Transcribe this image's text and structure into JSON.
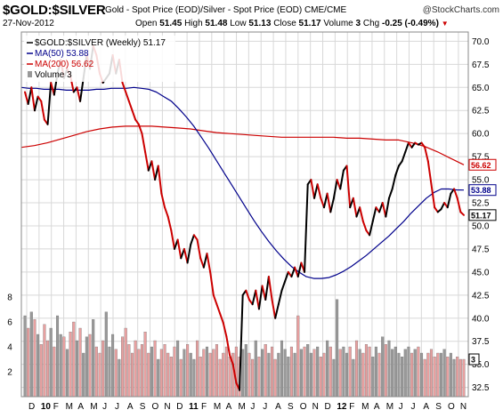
{
  "header": {
    "symbol": "$GOLD:$SILVER",
    "description": "Gold - Spot Price (EOD)/Silver - Spot Price (EOD) CME/CME",
    "brand": "@StockCharts.com",
    "date": "27-Nov-2012",
    "open_label": "Open",
    "open": "51.45",
    "high_label": "High",
    "high": "51.48",
    "low_label": "Low",
    "low": "51.13",
    "close_label": "Close",
    "close": "51.17",
    "volume_label": "Volume",
    "volume": "3",
    "chg_label": "Chg",
    "chg": "-0.25 (-0.49%)",
    "chg_arrow": "▼"
  },
  "legend": {
    "price": "$GOLD:$SILVER (Weekly) 51.17",
    "ma50": "MA(50) 53.88",
    "ma200": "MA(200) 56.62",
    "volume": "Volume 3"
  },
  "tags": {
    "ma200": "56.62",
    "ma50": "53.88",
    "close": "51.17",
    "volume": "3"
  },
  "colors": {
    "up": "#000000",
    "down": "#cc0000",
    "ma50": "#00008b",
    "ma200": "#cc0000",
    "vol_up": "#999999",
    "vol_down": "#e8a0a0",
    "grid": "#d8d8d8"
  },
  "chart_data": {
    "type": "line",
    "x_tick_labels": [
      "D",
      "10",
      "F",
      "M",
      "A",
      "M",
      "J",
      "J",
      "A",
      "S",
      "O",
      "N",
      "D",
      "11",
      "F",
      "M",
      "A",
      "M",
      "J",
      "J",
      "A",
      "S",
      "O",
      "N",
      "D",
      "12",
      "F",
      "M",
      "A",
      "M",
      "J",
      "J",
      "A",
      "S",
      "O",
      "N"
    ],
    "bold_x_labels": [
      "10",
      "11",
      "12"
    ],
    "price_axis": {
      "ylim": [
        31.5,
        71.0
      ],
      "ticks": [
        32.5,
        35.0,
        37.5,
        40.0,
        42.5,
        45.0,
        47.5,
        50.0,
        52.5,
        55.0,
        57.5,
        60.0,
        62.5,
        65.0,
        67.5,
        70.0
      ]
    },
    "volume_axis": {
      "ylim": [
        0,
        9
      ],
      "ticks": [
        2,
        4,
        6,
        8
      ]
    },
    "series": [
      {
        "name": "$GOLD:$SILVER (Weekly)",
        "values": [
          64.5,
          63.2,
          65.0,
          62.5,
          64.0,
          63.5,
          61.5,
          61.0,
          65.5,
          64.2,
          66.5,
          68.0,
          66.0,
          67.0,
          66.2,
          64.5,
          65.0,
          63.5,
          66.0,
          68.5,
          67.0,
          69.5,
          68.5,
          66.5,
          65.5,
          66.0,
          66.5,
          68.5,
          66.5,
          68.0,
          65.5,
          64.5,
          63.5,
          62.5,
          61.5,
          61.0,
          60.0,
          58.0,
          56.0,
          57.0,
          55.0,
          56.5,
          53.5,
          52.0,
          51.0,
          49.5,
          47.5,
          48.5,
          46.5,
          47.5,
          46.0,
          48.0,
          49.0,
          48.5,
          46.5,
          45.5,
          47.0,
          45.0,
          42.5,
          41.5,
          40.5,
          39.5,
          38.0,
          36.0,
          35.0,
          33.0,
          32.2,
          42.5,
          43.0,
          42.0,
          41.5,
          43.0,
          41.0,
          43.5,
          42.0,
          44.5,
          42.0,
          40.0,
          41.5,
          43.0,
          44.0,
          45.0,
          44.5,
          45.5,
          44.5,
          46.0,
          45.0,
          54.5,
          55.0,
          53.0,
          54.5,
          53.0,
          52.0,
          53.5,
          51.5,
          53.0,
          55.0,
          54.0,
          56.0,
          56.5,
          52.0,
          53.0,
          51.0,
          52.0,
          50.5,
          49.5,
          49.0,
          50.5,
          52.0,
          51.5,
          52.5,
          51.0,
          53.0,
          54.0,
          55.5,
          56.5,
          57.0,
          58.0,
          59.0,
          58.5,
          59.0,
          58.8,
          59.0,
          58.5,
          57.0,
          54.5,
          52.0,
          51.5,
          51.8,
          52.5,
          52.0,
          53.5,
          54.0,
          53.0,
          51.5,
          51.17
        ]
      },
      {
        "name": "MA(50)",
        "values": [
          65.0,
          64.9,
          64.9,
          64.8,
          64.8,
          64.8,
          64.7,
          64.7,
          64.7,
          64.7,
          64.8,
          64.8,
          64.9,
          64.9,
          64.9,
          65.0,
          64.9,
          64.8,
          64.5,
          64.0,
          63.5,
          62.7,
          61.8,
          60.8,
          59.6,
          58.4,
          57.1,
          55.8,
          54.5,
          53.2,
          51.9,
          50.6,
          49.4,
          48.3,
          47.3,
          46.4,
          45.6,
          45.0,
          44.5,
          44.3,
          44.3,
          44.4,
          44.7,
          45.1,
          45.6,
          46.2,
          46.8,
          47.5,
          48.2,
          48.9,
          49.7,
          50.5,
          51.4,
          52.2,
          53.0,
          53.6,
          54.0,
          54.0,
          53.9,
          53.88
        ]
      },
      {
        "name": "MA(200)",
        "values": [
          58.5,
          58.7,
          59.0,
          59.4,
          59.8,
          60.2,
          60.5,
          60.7,
          60.8,
          60.8,
          60.8,
          60.7,
          60.6,
          60.5,
          60.3,
          60.1,
          60.0,
          59.9,
          59.8,
          59.7,
          59.6,
          59.6,
          59.6,
          59.6,
          59.6,
          59.5,
          59.5,
          59.4,
          59.3,
          59.3,
          59.0,
          58.6,
          58.0,
          57.3,
          56.62
        ]
      },
      {
        "name": "Volume",
        "values": [
          6.5,
          5.5,
          6.8,
          6.2,
          5.0,
          4.2,
          5.8,
          4.5,
          5.5,
          4.0,
          6.5,
          5.0,
          4.8,
          3.8,
          5.2,
          6.0,
          4.5,
          5.5,
          3.5,
          4.8,
          5.0,
          6.2,
          4.0,
          3.5,
          4.5,
          6.8,
          4.0,
          5.0,
          3.8,
          3.0,
          4.8,
          5.5,
          4.2,
          3.5,
          4.5,
          3.8,
          4.2,
          5.2,
          3.5,
          4.0,
          4.5,
          3.0,
          3.8,
          4.2,
          3.5,
          3.2,
          4.0,
          4.5,
          3.0,
          3.8,
          4.2,
          3.5,
          3.0,
          4.5,
          3.2,
          3.8,
          4.0,
          3.5,
          3.8,
          4.2,
          3.0,
          3.5,
          4.0,
          3.2,
          3.5,
          4.0,
          3.2,
          3.8,
          4.2,
          3.5,
          3.0,
          4.5,
          3.2,
          3.8,
          4.2,
          3.5,
          4.0,
          3.0,
          3.5,
          4.5,
          3.8,
          3.2,
          4.0,
          3.5,
          6.5,
          3.8,
          4.0,
          4.2,
          3.5,
          3.8,
          4.0,
          3.2,
          3.5,
          4.5,
          4.0,
          3.0,
          7.8,
          3.8,
          4.0,
          3.5,
          4.0,
          3.0,
          4.5,
          3.8,
          3.5,
          4.2,
          4.0,
          3.2,
          4.0,
          3.5,
          4.8,
          4.2,
          4.5,
          3.8,
          4.0,
          3.5,
          3.2,
          3.8,
          4.0,
          3.5,
          3.8,
          4.0,
          3.5,
          3.0,
          3.5,
          3.8,
          3.2,
          3.5,
          3.5,
          3.8,
          3.2,
          3.5,
          3.0,
          3.2,
          3.0,
          3.0
        ]
      }
    ]
  }
}
